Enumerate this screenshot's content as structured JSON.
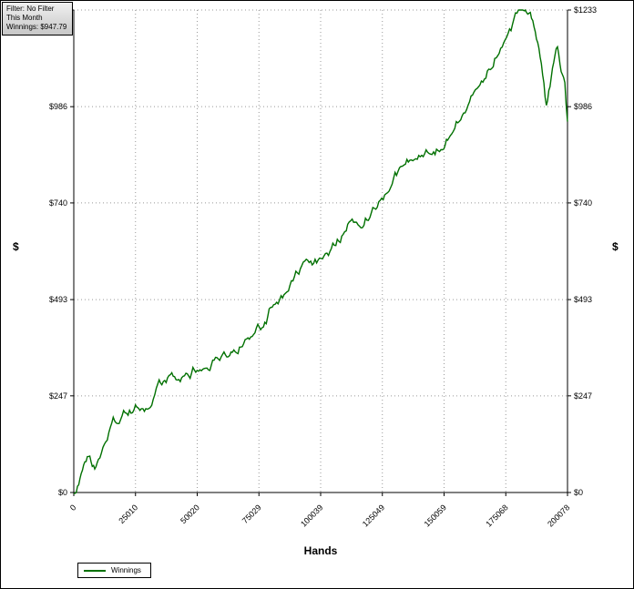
{
  "info_box": {
    "filter": "Filter: No Filter",
    "period": "This Month",
    "winnings": "Winnings: $947.79"
  },
  "axes": {
    "left_title": "$",
    "right_title": "$",
    "x_title": "Hands"
  },
  "legend": {
    "label": "Winnings"
  },
  "chart_data": {
    "type": "line",
    "title": "",
    "xlabel": "Hands",
    "ylabel": "$",
    "xlim": [
      0,
      200078
    ],
    "ylim": [
      0,
      1233
    ],
    "x_ticks": [
      0,
      25010,
      50020,
      75029,
      100039,
      125049,
      150059,
      175068,
      200078
    ],
    "y_ticks": [
      0,
      247,
      493,
      740,
      986,
      1233
    ],
    "y_tick_labels": [
      "$0",
      "$247",
      "$493",
      "$740",
      "$986",
      "$1233"
    ],
    "grid": "dotted",
    "legend_position": "bottom-left",
    "line_color": "#007000",
    "series": [
      {
        "name": "Winnings",
        "final_value": 947.79,
        "anchors": [
          [
            0,
            0
          ],
          [
            1500,
            25
          ],
          [
            4000,
            75
          ],
          [
            6500,
            90
          ],
          [
            8500,
            55
          ],
          [
            10000,
            70
          ],
          [
            13000,
            140
          ],
          [
            16000,
            185
          ],
          [
            19000,
            190
          ],
          [
            22000,
            205
          ],
          [
            25000,
            215
          ],
          [
            28000,
            235
          ],
          [
            31000,
            230
          ],
          [
            34000,
            260
          ],
          [
            38000,
            285
          ],
          [
            42000,
            300
          ],
          [
            46000,
            295
          ],
          [
            50000,
            320
          ],
          [
            54000,
            330
          ],
          [
            58000,
            345
          ],
          [
            62000,
            365
          ],
          [
            66000,
            385
          ],
          [
            70000,
            405
          ],
          [
            74000,
            425
          ],
          [
            78000,
            445
          ],
          [
            81000,
            490
          ],
          [
            84000,
            495
          ],
          [
            87000,
            505
          ],
          [
            90000,
            545
          ],
          [
            93000,
            570
          ],
          [
            96000,
            575
          ],
          [
            99000,
            585
          ],
          [
            102000,
            600
          ],
          [
            105000,
            620
          ],
          [
            108000,
            650
          ],
          [
            111000,
            680
          ],
          [
            114000,
            700
          ],
          [
            117000,
            710
          ],
          [
            120000,
            725
          ],
          [
            123000,
            745
          ],
          [
            126000,
            765
          ],
          [
            129000,
            785
          ],
          [
            132000,
            815
          ],
          [
            135000,
            840
          ],
          [
            138000,
            860
          ],
          [
            141000,
            870
          ],
          [
            144000,
            865
          ],
          [
            147000,
            875
          ],
          [
            150000,
            885
          ],
          [
            152000,
            920
          ],
          [
            155000,
            965
          ],
          [
            158000,
            980
          ],
          [
            161000,
            1000
          ],
          [
            164000,
            1035
          ],
          [
            167000,
            1070
          ],
          [
            170000,
            1105
          ],
          [
            173000,
            1150
          ],
          [
            176000,
            1185
          ],
          [
            179000,
            1210
          ],
          [
            182000,
            1228
          ],
          [
            184000,
            1233
          ],
          [
            186000,
            1215
          ],
          [
            188000,
            1150
          ],
          [
            190000,
            1060
          ],
          [
            191500,
            985
          ],
          [
            193000,
            1040
          ],
          [
            194500,
            1090
          ],
          [
            196000,
            1130
          ],
          [
            197500,
            1085
          ],
          [
            199000,
            1060
          ],
          [
            200078,
            947.79
          ]
        ]
      }
    ]
  }
}
